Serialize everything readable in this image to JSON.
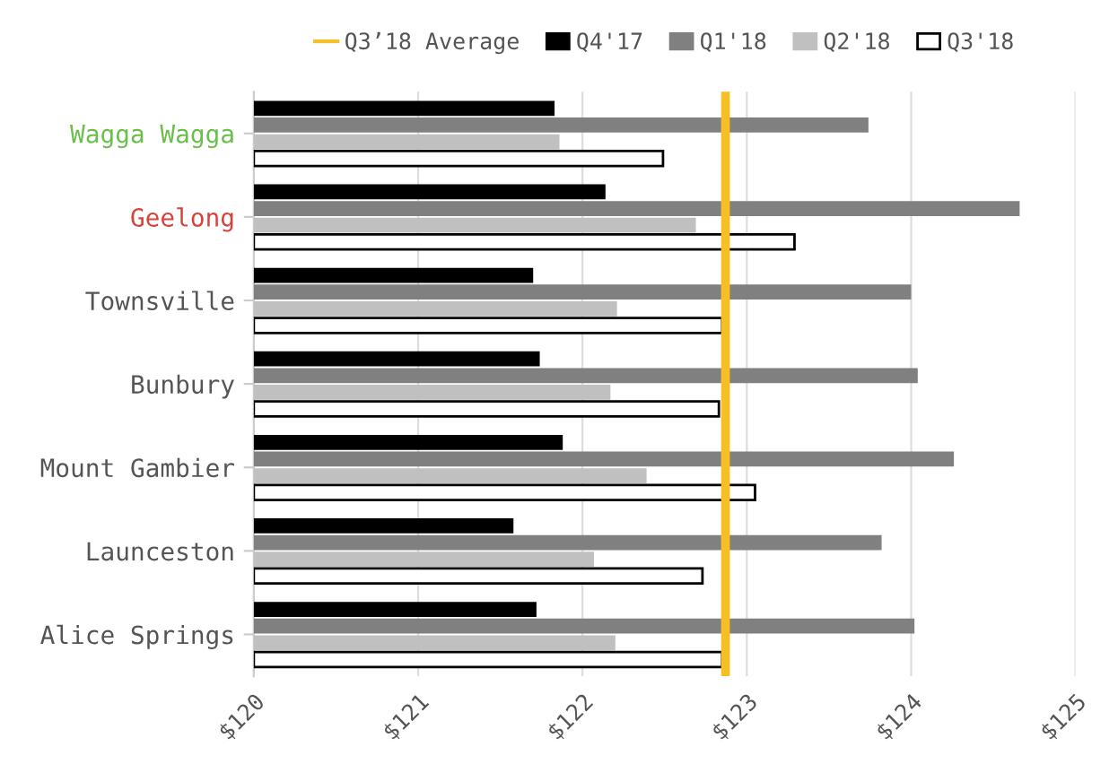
{
  "chart_data": {
    "type": "bar",
    "orientation": "horizontal",
    "categories": [
      "Wagga Wagga",
      "Geelong",
      "Townsville",
      "Bunbury",
      "Mount Gambier",
      "Launceston",
      "Alice Springs"
    ],
    "series": [
      {
        "name": "Q4'17",
        "color": "#000000",
        "values": [
          121.83,
          122.14,
          121.7,
          121.74,
          121.88,
          121.58,
          121.72
        ]
      },
      {
        "name": "Q1'18",
        "color": "#808080",
        "values": [
          123.74,
          124.66,
          124.0,
          124.04,
          124.26,
          123.82,
          124.02
        ]
      },
      {
        "name": "Q2'18",
        "color": "#c0c0c0",
        "values": [
          121.86,
          122.69,
          122.21,
          122.17,
          122.39,
          122.07,
          122.2
        ]
      },
      {
        "name": "Q3'18",
        "color": "#ffffff",
        "values": [
          122.49,
          123.29,
          122.85,
          122.83,
          123.05,
          122.73,
          122.85
        ]
      }
    ],
    "ref_lines": [
      {
        "axis": "x",
        "value": 122.87,
        "label": "Q3’18 Average",
        "color": "#f6bf26"
      }
    ],
    "xlim": [
      120,
      125
    ],
    "xticks": [
      {
        "value": 120,
        "label": "$120"
      },
      {
        "value": 121,
        "label": "$121"
      },
      {
        "value": 122,
        "label": "$122"
      },
      {
        "value": 123,
        "label": "$123"
      },
      {
        "value": 124,
        "label": "$124"
      },
      {
        "value": 125,
        "label": "$125"
      }
    ],
    "grid": "x",
    "legend": "top"
  }
}
